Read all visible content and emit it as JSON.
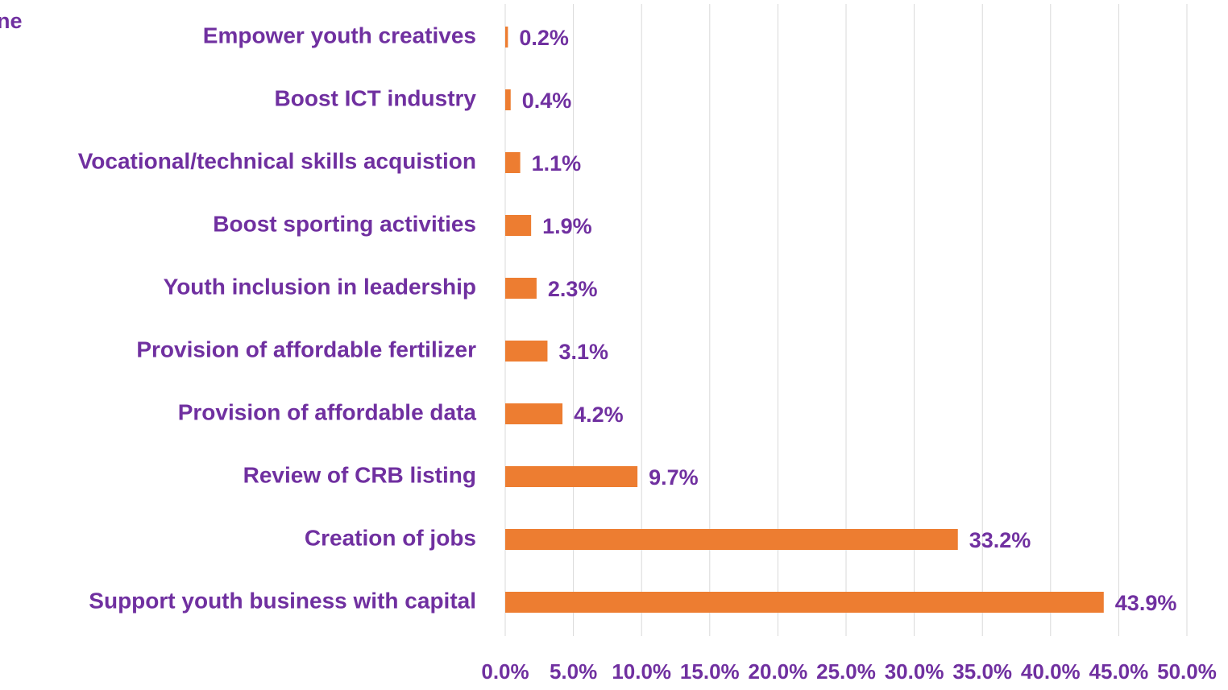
{
  "chart_data": {
    "type": "bar",
    "orientation": "horizontal",
    "title": "ne",
    "categories": [
      "Empower youth creatives",
      "Boost ICT industry",
      "Vocational/technical skills acquistion",
      "Boost sporting activities",
      "Youth inclusion in leadership",
      "Provision of affordable fertilizer",
      "Provision of affordable data",
      "Review of CRB listing",
      "Creation of jobs",
      "Support youth business with capital"
    ],
    "values": [
      0.2,
      0.4,
      1.1,
      1.9,
      2.3,
      3.1,
      4.2,
      9.7,
      33.2,
      43.9
    ],
    "value_labels": [
      "0.2%",
      "0.4%",
      "1.1%",
      "1.9%",
      "2.3%",
      "3.1%",
      "4.2%",
      "9.7%",
      "33.2%",
      "43.9%"
    ],
    "color": "#ed7d31",
    "text_color": "#7030a0",
    "xlim": [
      0,
      50
    ],
    "xticks": [
      {
        "value": 0,
        "label": "0.0%"
      },
      {
        "value": 5,
        "label": "5.0%"
      },
      {
        "value": 10,
        "label": "10.0%"
      },
      {
        "value": 15,
        "label": "15.0%"
      },
      {
        "value": 20,
        "label": "20.0%"
      },
      {
        "value": 25,
        "label": "25.0%"
      },
      {
        "value": 30,
        "label": "30.0%"
      },
      {
        "value": 35,
        "label": "35.0%"
      },
      {
        "value": 40,
        "label": "40.0%"
      },
      {
        "value": 45,
        "label": "45.0%"
      },
      {
        "value": 50,
        "label": "50.0%"
      }
    ],
    "grid": true
  }
}
